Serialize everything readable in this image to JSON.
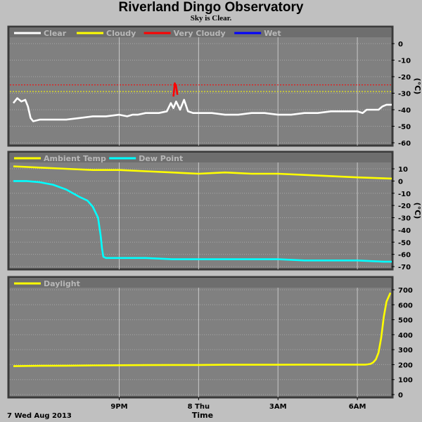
{
  "title": "Riverland Dingo Observatory",
  "subtitle": "Sky is Clear.",
  "x_axis": {
    "ticks": [
      "9PM",
      "8 Thu",
      "3AM",
      "6AM"
    ],
    "date_label": "7 Wed Aug 2013",
    "label": "Time"
  },
  "colors": {
    "background": "#c0c0c0",
    "plot": "#808080",
    "clear": "#ffffff",
    "cloudy": "#ffff00",
    "very_cloudy": "#ff0000",
    "wet": "#0000ff",
    "dew": "#00ffff",
    "ambient": "#ffff00",
    "daylight": "#ffff00"
  },
  "chart_data": [
    {
      "type": "line",
      "ylabel": "(°C)",
      "ylim": [
        -60,
        10
      ],
      "yticks": [
        0,
        -10,
        -20,
        -30,
        -40,
        -50,
        -60
      ],
      "legend": [
        "Clear",
        "Cloudy",
        "Very Cloudy",
        "Wet"
      ],
      "thresholds": [
        {
          "name": "Very Cloudy",
          "y": -25
        },
        {
          "name": "Cloudy",
          "y": -29
        }
      ],
      "series": [
        {
          "name": "Clear",
          "x": [
            17.0,
            17.15,
            17.3,
            17.45,
            17.55,
            17.65,
            17.75,
            18.0,
            18.5,
            19.0,
            19.5,
            20.0,
            20.5,
            21.0,
            21.3,
            21.5,
            21.7,
            22.0,
            22.5,
            22.8,
            22.95,
            23.05,
            23.15,
            23.3,
            23.45,
            23.6,
            23.8,
            24.0,
            24.5,
            25.0,
            25.5,
            26.0,
            26.5,
            27.0,
            27.5,
            28.0,
            28.5,
            29.0,
            29.5,
            30.0,
            30.2,
            30.35,
            30.5,
            30.8,
            30.95,
            31.1,
            31.3
          ],
          "y": [
            -36,
            -33,
            -35,
            -34,
            -38,
            -45,
            -47,
            -46,
            -46,
            -46,
            -45,
            -44,
            -44,
            -43,
            -44,
            -43,
            -43,
            -42,
            -42,
            -41,
            -36,
            -39,
            -35,
            -40,
            -34,
            -41,
            -42,
            -42,
            -42,
            -43,
            -43,
            -42,
            -42,
            -43,
            -43,
            -42,
            -42,
            -41,
            -41,
            -41,
            -42,
            -40,
            -40,
            -40,
            -38,
            -37,
            -37
          ]
        },
        {
          "name": "Very Cloudy",
          "x": [
            23.05,
            23.1,
            23.15,
            23.2
          ],
          "y": [
            -32,
            -24,
            -26,
            -31
          ]
        }
      ]
    },
    {
      "type": "line",
      "ylabel": "(°C)",
      "ylim": [
        -70,
        10
      ],
      "yticks": [
        10,
        0,
        -10,
        -20,
        -30,
        -40,
        -50,
        -60,
        -70
      ],
      "legend": [
        "Ambient Temp",
        "Dew Point"
      ],
      "series": [
        {
          "name": "Ambient Temp",
          "x": [
            17.0,
            18.0,
            19.0,
            20.0,
            21.0,
            22.0,
            23.0,
            24.0,
            25.0,
            26.0,
            27.0,
            28.0,
            29.0,
            30.0,
            31.3
          ],
          "y": [
            12,
            11,
            10,
            9,
            9,
            8,
            7,
            6,
            7,
            6,
            6,
            5,
            4,
            3,
            2
          ]
        },
        {
          "name": "Dew Point",
          "x": [
            17.0,
            17.5,
            18.0,
            18.5,
            19.0,
            19.5,
            19.8,
            20.0,
            20.2,
            20.3,
            20.35,
            20.4,
            20.5,
            21.0,
            22.0,
            23.0,
            24.0,
            25.0,
            26.0,
            27.0,
            28.0,
            29.0,
            30.0,
            31.0,
            31.3
          ],
          "y": [
            0,
            0,
            -1,
            -3,
            -7,
            -13,
            -16,
            -21,
            -30,
            -45,
            -55,
            -62,
            -63,
            -63,
            -63,
            -64,
            -64,
            -64,
            -64,
            -64,
            -65,
            -65,
            -65,
            -66,
            -66
          ]
        }
      ]
    },
    {
      "type": "line",
      "ylim": [
        0,
        700
      ],
      "yticks": [
        700,
        600,
        500,
        400,
        300,
        200,
        100,
        0
      ],
      "legend": [
        "Daylight"
      ],
      "series": [
        {
          "name": "Daylight",
          "x": [
            17.0,
            18.0,
            19.0,
            20.0,
            21.0,
            22.0,
            23.0,
            24.0,
            25.0,
            26.0,
            27.0,
            28.0,
            29.0,
            30.0,
            30.3,
            30.4,
            30.5,
            30.6,
            30.7,
            30.8,
            30.9,
            31.0,
            31.1,
            31.25
          ],
          "y": [
            190,
            192,
            193,
            195,
            196,
            197,
            198,
            198,
            199,
            199,
            199,
            200,
            200,
            200,
            200,
            202,
            205,
            215,
            235,
            280,
            380,
            520,
            620,
            680
          ]
        }
      ]
    }
  ]
}
